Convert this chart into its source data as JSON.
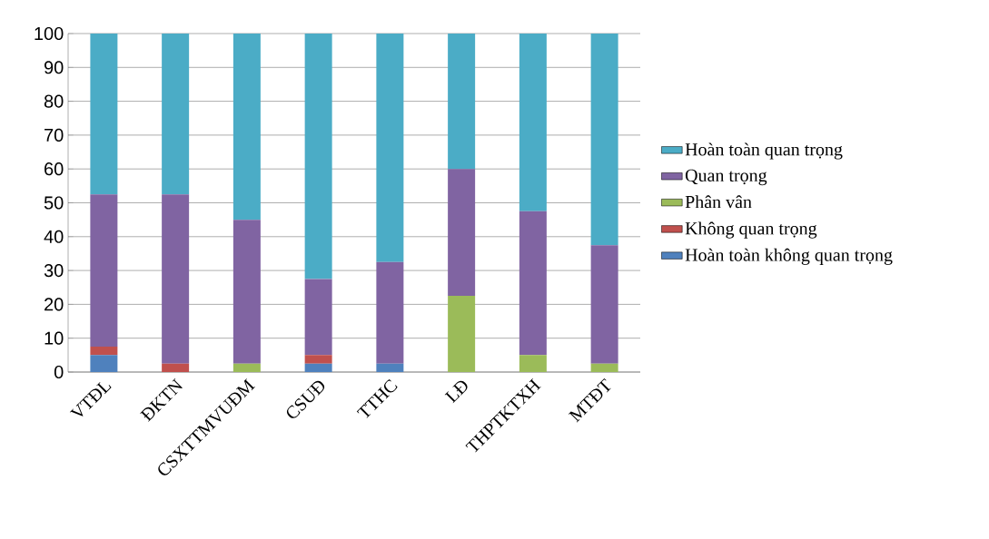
{
  "chart_data": {
    "type": "bar",
    "stacked": true,
    "categories": [
      "VTĐL",
      "ĐKTN",
      "CSXTTMVUĐM",
      "CSUĐ",
      "TTHC",
      "LĐ",
      "THPTKTXH",
      "MTĐT"
    ],
    "series": [
      {
        "name": "Hoàn toàn không quan trọng",
        "color": "#4f81bd",
        "values": [
          5,
          0,
          0,
          2.5,
          2.5,
          0,
          0,
          0
        ]
      },
      {
        "name": "Không quan trọng",
        "color": "#c0504d",
        "values": [
          2.5,
          2.5,
          0,
          2.5,
          0,
          0,
          0,
          0
        ]
      },
      {
        "name": "Phân vân",
        "color": "#9bbb59",
        "values": [
          0,
          0,
          2.5,
          0,
          0,
          22.5,
          5,
          2.5
        ]
      },
      {
        "name": "Quan trọng",
        "color": "#8064a2",
        "values": [
          45,
          50,
          42.5,
          22.5,
          30,
          37.5,
          42.5,
          35
        ]
      },
      {
        "name": "Hoàn toàn quan trọng",
        "color": "#4bacc6",
        "values": [
          47.5,
          47.5,
          55,
          72.5,
          67.5,
          40,
          52.5,
          62.5
        ]
      }
    ],
    "ylim": [
      0,
      100
    ],
    "yticks": [
      0,
      10,
      20,
      30,
      40,
      50,
      60,
      70,
      80,
      90,
      100
    ],
    "grid": "y",
    "legend": "right"
  }
}
